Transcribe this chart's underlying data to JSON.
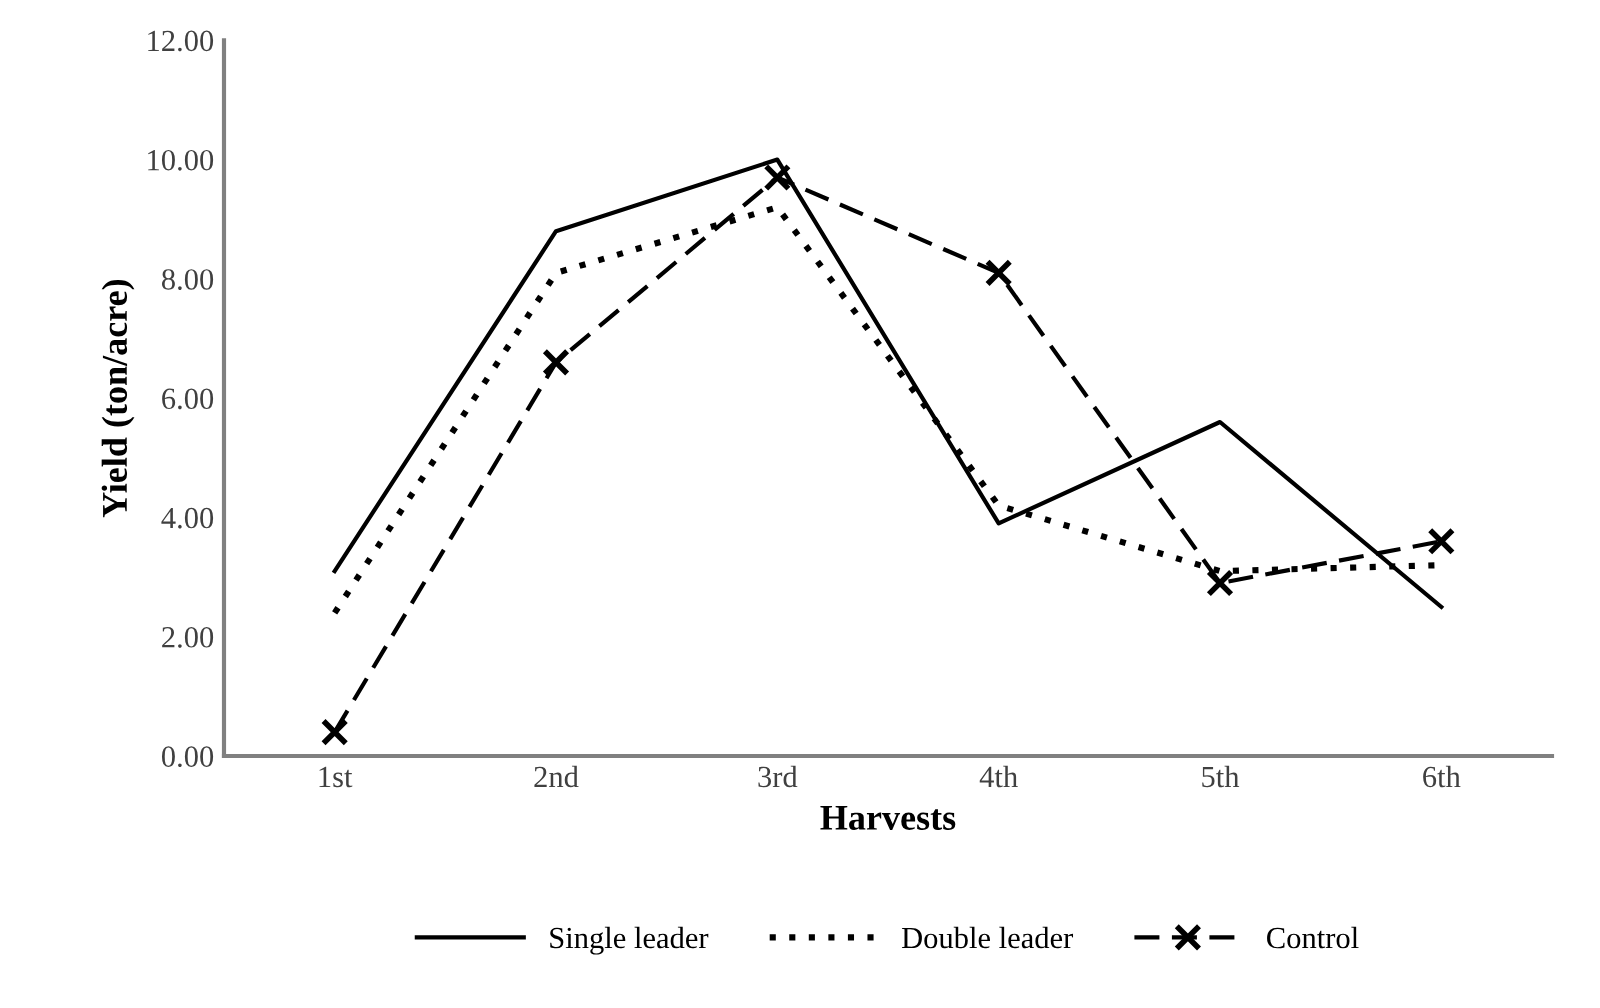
{
  "chart_data": {
    "type": "line",
    "xlabel": "Harvests",
    "ylabel": "Yield (ton/acre)",
    "categories": [
      "1st",
      "2nd",
      "3rd",
      "4th",
      "5th",
      "6th"
    ],
    "series": [
      {
        "name": "Single leader",
        "color": "#000000",
        "line_style": "solid",
        "marker": "none",
        "values": [
          3.1,
          8.8,
          10.0,
          3.9,
          5.6,
          2.5
        ]
      },
      {
        "name": "Double leader",
        "color": "#000000",
        "line_style": "dotted",
        "marker": "none",
        "values": [
          2.4,
          8.1,
          9.2,
          4.2,
          3.1,
          3.2
        ]
      },
      {
        "name": "Control",
        "color": "#000000",
        "line_style": "dashed",
        "marker": "cross",
        "values": [
          0.4,
          6.6,
          9.7,
          8.1,
          2.9,
          3.6
        ]
      }
    ],
    "ylim": [
      0,
      12
    ],
    "yticks": [
      {
        "value": 0,
        "label": "0.00"
      },
      {
        "value": 2,
        "label": "2.00"
      },
      {
        "value": 4,
        "label": "4.00"
      },
      {
        "value": 6,
        "label": "6.00"
      },
      {
        "value": 8,
        "label": "8.00"
      },
      {
        "value": 10,
        "label": "10.00"
      },
      {
        "value": 12,
        "label": "12.00"
      }
    ],
    "grid": false,
    "legend": "bottom"
  }
}
